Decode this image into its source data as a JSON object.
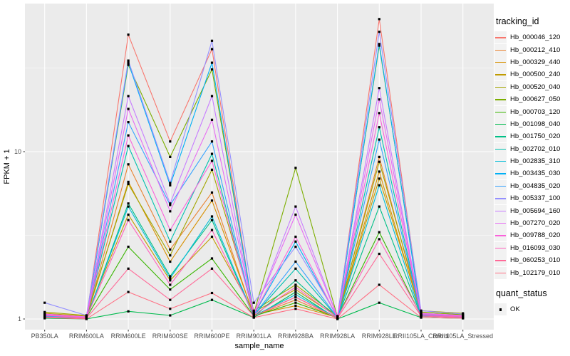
{
  "figure": {
    "background": "#FFFFFF",
    "panel_background": "#EBEBEB",
    "grid_color": "#FFFFFF",
    "tick_mark_color": "#333333",
    "tick_label_color": "#4D4D4D",
    "axis_title_color": "#000000",
    "point_color": "#000000",
    "legend_key_background": "#F2F2F2"
  },
  "legend": {
    "color_title": "tracking_id",
    "shape_title": "quant_status",
    "shape_items": [
      {
        "label": "OK",
        "marker": "black-square"
      }
    ]
  },
  "chart_data": {
    "type": "line",
    "title": "",
    "xlabel": "sample_name",
    "ylabel": "FPKM + 1",
    "y_scale": "log10",
    "ylim": [
      0.83,
      77
    ],
    "y_major_ticks": [
      {
        "label": "1",
        "value": 1
      },
      {
        "label": "10",
        "value": 10
      }
    ],
    "y_minor_ticks": [
      3.1623,
      31.623
    ],
    "grid": true,
    "legend_position": "right",
    "marker": "black-square",
    "categories": [
      "PB350LA",
      "RRIM600LA",
      "RRIM600LE",
      "RRIM600SE",
      "RRIM600PE",
      "RRIM901LA",
      "RRIM928BA",
      "RRIM928LA",
      "RRIM928LE",
      "RRII105LA_Control",
      "RRII105LA_Stressed"
    ],
    "series": [
      {
        "name": "Hb_000046_120",
        "color": "#F8766D",
        "values": [
          1.05,
          1.02,
          50,
          11.5,
          41,
          1.05,
          1.35,
          1.02,
          62,
          1.08,
          1.04
        ]
      },
      {
        "name": "Hb_000212_410",
        "color": "#EA8331",
        "values": [
          1.02,
          1.01,
          8.4,
          2.6,
          5.7,
          1.04,
          1.3,
          1.01,
          9.3,
          1.05,
          1.03
        ]
      },
      {
        "name": "Hb_000329_440",
        "color": "#D89000",
        "values": [
          1.04,
          1.02,
          6.6,
          2.2,
          5.1,
          1.06,
          1.2,
          1.02,
          7.6,
          1.06,
          1.04
        ]
      },
      {
        "name": "Hb_000500_240",
        "color": "#C09B00",
        "values": [
          1.08,
          1.04,
          4.2,
          1.7,
          3.1,
          1.1,
          1.5,
          1.03,
          6.9,
          1.1,
          1.06
        ]
      },
      {
        "name": "Hb_000520_040",
        "color": "#A3A500",
        "values": [
          1.1,
          1.05,
          6.4,
          2.4,
          7.8,
          1.12,
          1.6,
          1.04,
          8.7,
          1.12,
          1.08
        ]
      },
      {
        "name": "Hb_000627_050",
        "color": "#7CAE00",
        "values": [
          1.06,
          1.03,
          33,
          9.3,
          31,
          1.08,
          8.0,
          1.03,
          43,
          1.1,
          1.06
        ]
      },
      {
        "name": "Hb_000703_120",
        "color": "#39B600",
        "values": [
          1.03,
          1.02,
          2.7,
          1.5,
          2.3,
          1.04,
          1.25,
          1.02,
          3.3,
          1.04,
          1.02
        ]
      },
      {
        "name": "Hb_001098_040",
        "color": "#00BB4E",
        "values": [
          1.01,
          1.0,
          1.11,
          1.05,
          1.3,
          1.02,
          1.45,
          1.0,
          1.25,
          1.02,
          1.01
        ]
      },
      {
        "name": "Hb_001750_020",
        "color": "#00C087",
        "values": [
          1.02,
          1.01,
          4.9,
          1.8,
          3.9,
          1.03,
          1.7,
          1.01,
          4.7,
          1.04,
          1.02
        ]
      },
      {
        "name": "Hb_002702_010",
        "color": "#00C0AF",
        "values": [
          1.04,
          1.02,
          10.8,
          2.9,
          9.7,
          1.05,
          2.0,
          1.02,
          14,
          1.05,
          1.03
        ]
      },
      {
        "name": "Hb_002835_310",
        "color": "#00BCD8",
        "values": [
          1.03,
          1.01,
          4.7,
          1.75,
          4.1,
          1.04,
          1.4,
          1.01,
          6.3,
          1.04,
          1.02
        ]
      },
      {
        "name": "Hb_003435_030",
        "color": "#00B0F6",
        "values": [
          1.05,
          1.02,
          34,
          6.3,
          34,
          1.06,
          2.9,
          1.02,
          44,
          1.06,
          1.03
        ]
      },
      {
        "name": "Hb_004835_020",
        "color": "#35A2FF",
        "values": [
          1.04,
          1.02,
          15,
          4.8,
          11.5,
          1.05,
          2.2,
          1.02,
          11.8,
          1.05,
          1.03
        ]
      },
      {
        "name": "Hb_005337_100",
        "color": "#9590FF",
        "values": [
          1.25,
          1.05,
          35,
          6.5,
          46,
          1.25,
          2.7,
          1.04,
          52,
          1.12,
          1.07
        ]
      },
      {
        "name": "Hb_005694_160",
        "color": "#C77CFF",
        "values": [
          1.06,
          1.03,
          21.5,
          4.9,
          21.5,
          1.07,
          4.7,
          1.03,
          24,
          1.07,
          1.04
        ]
      },
      {
        "name": "Hb_007270_020",
        "color": "#E76BF3",
        "values": [
          1.07,
          1.03,
          18,
          4.4,
          15.5,
          1.08,
          4.2,
          1.03,
          20.5,
          1.08,
          1.05
        ]
      },
      {
        "name": "Hb_009788_020",
        "color": "#FA62DB",
        "values": [
          1.06,
          1.02,
          12.5,
          3.4,
          8.8,
          1.07,
          3.1,
          1.02,
          17,
          1.07,
          1.04
        ]
      },
      {
        "name": "Hb_016093_030",
        "color": "#FF62BC",
        "values": [
          1.05,
          1.02,
          3.9,
          1.6,
          3.4,
          1.06,
          1.55,
          1.02,
          3.0,
          1.05,
          1.03
        ]
      },
      {
        "name": "Hb_060253_010",
        "color": "#FF6A98",
        "values": [
          1.03,
          1.01,
          2.0,
          1.3,
          2.0,
          1.04,
          1.35,
          1.01,
          2.45,
          1.04,
          1.02
        ]
      },
      {
        "name": "Hb_102179_010",
        "color": "#FF6F83",
        "values": [
          1.02,
          1.0,
          1.45,
          1.15,
          1.43,
          1.02,
          1.15,
          1.0,
          1.6,
          1.02,
          1.01
        ]
      }
    ]
  }
}
